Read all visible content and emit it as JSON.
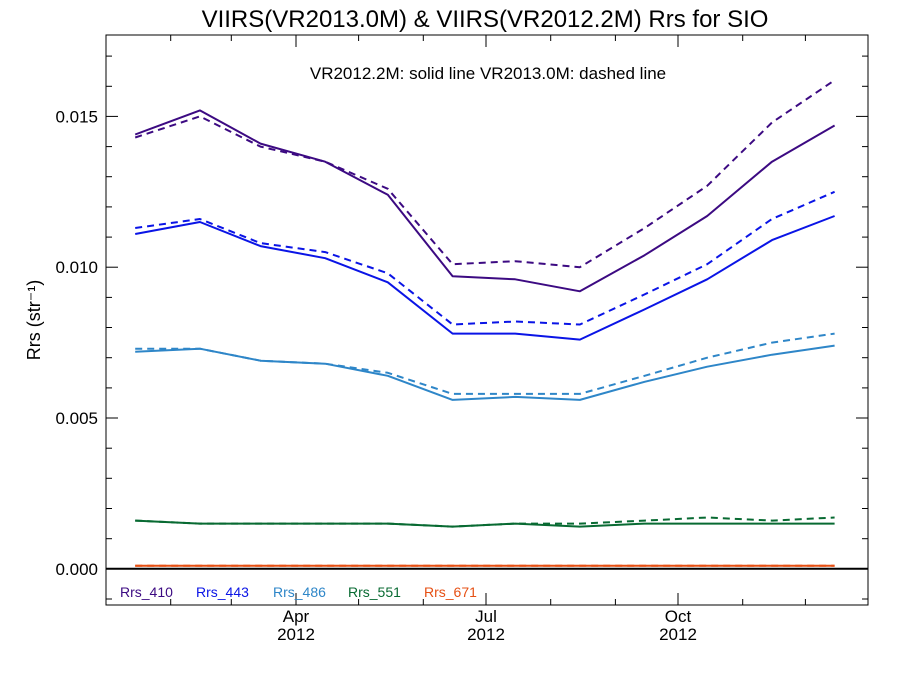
{
  "chart_data": {
    "type": "line",
    "title": "VIIRS(VR2013.0M) & VIIRS(VR2012.2M)  Rrs for SIO",
    "annotation": "VR2012.2M: solid line   VR2013.0M: dashed line",
    "xlabel": "",
    "ylabel": "Rrs (str⁻¹)",
    "x": [
      "2012-01-15",
      "2012-02-15",
      "2012-03-15",
      "2012-04-15",
      "2012-05-15",
      "2012-06-15",
      "2012-07-15",
      "2012-08-15",
      "2012-09-15",
      "2012-10-15",
      "2012-11-15",
      "2012-12-15"
    ],
    "xlim": [
      "2012-01-01",
      "2012-12-31"
    ],
    "ylim": [
      -0.0012,
      0.0177
    ],
    "y_ticks": [
      {
        "value": 0.0,
        "label": "0.000"
      },
      {
        "value": 0.005,
        "label": "0.005"
      },
      {
        "value": 0.01,
        "label": "0.010"
      },
      {
        "value": 0.015,
        "label": "0.015"
      }
    ],
    "x_ticks": [
      {
        "date": "2012-04-01",
        "month": "Apr",
        "year": "2012"
      },
      {
        "date": "2012-07-01",
        "month": "Jul",
        "year": "2012"
      },
      {
        "date": "2012-10-01",
        "month": "Oct",
        "year": "2012"
      }
    ],
    "zero_line": true,
    "grid": false,
    "legend_position": "bottom-left",
    "series": [
      {
        "name": "Rrs_410",
        "color": "#3c0a82",
        "solid": [
          0.0144,
          0.0152,
          0.0141,
          0.0135,
          0.0124,
          0.0097,
          0.0096,
          0.0092,
          0.0104,
          0.0117,
          0.0135,
          0.0147
        ],
        "dashed": [
          0.0143,
          0.015,
          0.014,
          0.0135,
          0.0126,
          0.0101,
          0.0102,
          0.01,
          0.0113,
          0.0127,
          0.0148,
          0.0162
        ]
      },
      {
        "name": "Rrs_443",
        "color": "#0a14e6",
        "solid": [
          0.0111,
          0.0115,
          0.0107,
          0.0103,
          0.0095,
          0.0078,
          0.0078,
          0.0076,
          0.0086,
          0.0096,
          0.0109,
          0.0117
        ],
        "dashed": [
          0.0113,
          0.0116,
          0.0108,
          0.0105,
          0.0098,
          0.0081,
          0.0082,
          0.0081,
          0.0091,
          0.0101,
          0.0116,
          0.0125
        ]
      },
      {
        "name": "Rrs_486",
        "color": "#2e86c8",
        "solid": [
          0.0072,
          0.0073,
          0.0069,
          0.0068,
          0.0064,
          0.0056,
          0.0057,
          0.0056,
          0.0062,
          0.0067,
          0.0071,
          0.0074
        ],
        "dashed": [
          0.0073,
          0.0073,
          0.0069,
          0.0068,
          0.0065,
          0.0058,
          0.0058,
          0.0058,
          0.0064,
          0.007,
          0.0075,
          0.0078
        ]
      },
      {
        "name": "Rrs_551",
        "color": "#086a32",
        "solid": [
          0.0016,
          0.0015,
          0.0015,
          0.0015,
          0.0015,
          0.0014,
          0.0015,
          0.0014,
          0.0015,
          0.0015,
          0.0015,
          0.0015
        ],
        "dashed": [
          0.0016,
          0.0015,
          0.0015,
          0.0015,
          0.0015,
          0.0014,
          0.0015,
          0.0015,
          0.0016,
          0.0017,
          0.0016,
          0.0017
        ]
      },
      {
        "name": "Rrs_671",
        "color": "#e65014",
        "solid": [
          0.0001,
          0.0001,
          0.0001,
          0.0001,
          0.0001,
          0.0001,
          0.0001,
          0.0001,
          0.0001,
          0.0001,
          0.0001,
          0.0001
        ],
        "dashed": [
          0.0001,
          0.0001,
          0.0001,
          0.0001,
          0.0001,
          0.0001,
          0.0001,
          0.0001,
          0.0001,
          0.0001,
          0.0001,
          0.0001
        ]
      }
    ]
  }
}
